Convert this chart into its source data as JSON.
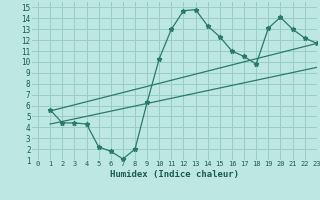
{
  "bg_color": "#bde8e2",
  "line_color": "#2a7a6a",
  "grid_color": "#99cccc",
  "xlabel": "Humidex (Indice chaleur)",
  "xlim": [
    -0.5,
    23
  ],
  "ylim": [
    1,
    15.5
  ],
  "xticks": [
    0,
    1,
    2,
    3,
    4,
    5,
    6,
    7,
    8,
    9,
    10,
    11,
    12,
    13,
    14,
    15,
    16,
    17,
    18,
    19,
    20,
    21,
    22,
    23
  ],
  "yticks": [
    1,
    2,
    3,
    4,
    5,
    6,
    7,
    8,
    9,
    10,
    11,
    12,
    13,
    14,
    15
  ],
  "line1_x": [
    1,
    2,
    3,
    4,
    5,
    6,
    7,
    8,
    9,
    10,
    11,
    12,
    13,
    14,
    15,
    16,
    17,
    18,
    19,
    20,
    21,
    22,
    23
  ],
  "line1_y": [
    5.6,
    4.4,
    4.4,
    4.3,
    2.2,
    1.8,
    1.1,
    2.0,
    6.3,
    10.3,
    13.0,
    14.7,
    14.8,
    13.3,
    12.3,
    11.0,
    10.5,
    9.8,
    13.1,
    14.1,
    13.0,
    12.2,
    11.7
  ],
  "line2_x": [
    1,
    23
  ],
  "line2_y": [
    5.5,
    11.7
  ],
  "line3_x": [
    1,
    23
  ],
  "line3_y": [
    4.3,
    9.5
  ]
}
